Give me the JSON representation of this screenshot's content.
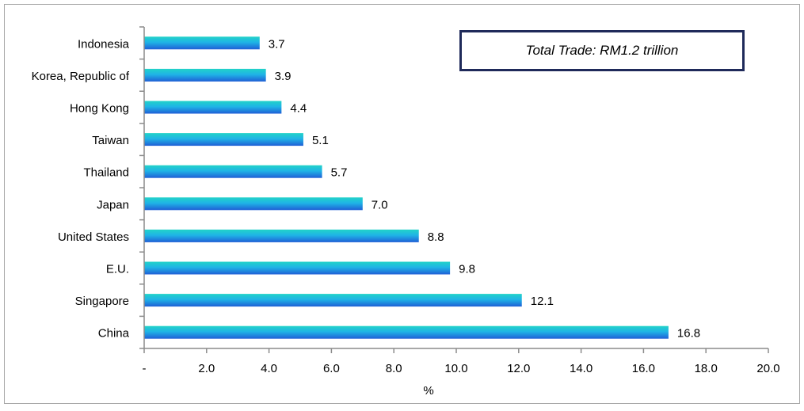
{
  "chart_data": {
    "type": "bar",
    "orientation": "horizontal",
    "categories": [
      "Indonesia",
      "Korea, Republic of",
      "Hong Kong",
      "Taiwan",
      "Thailand",
      "Japan",
      "United States",
      "E.U.",
      "Singapore",
      "China"
    ],
    "values": [
      3.7,
      3.9,
      4.4,
      5.1,
      5.7,
      7.0,
      8.8,
      9.8,
      12.1,
      16.8
    ],
    "value_labels": [
      "3.7",
      "3.9",
      "4.4",
      "5.1",
      "5.7",
      "7.0",
      "8.8",
      "9.8",
      "12.1",
      "16.8"
    ],
    "xlabel": "%",
    "xlim": [
      0,
      20
    ],
    "xticks": [
      0,
      2,
      4,
      6,
      8,
      10,
      12,
      14,
      16,
      18,
      20
    ],
    "xtick_labels": [
      "-",
      "2.0",
      "4.0",
      "6.0",
      "8.0",
      "10.0",
      "12.0",
      "14.0",
      "16.0",
      "18.0",
      "20.0"
    ],
    "grid": false,
    "annotation": "Total Trade: RM1.2 trillion",
    "colors": {
      "bar_top": "#22d3c8",
      "bar_bottom": "#1f5fd6",
      "axis": "#8c8c8c",
      "note_border": "#1f2a5a"
    }
  }
}
